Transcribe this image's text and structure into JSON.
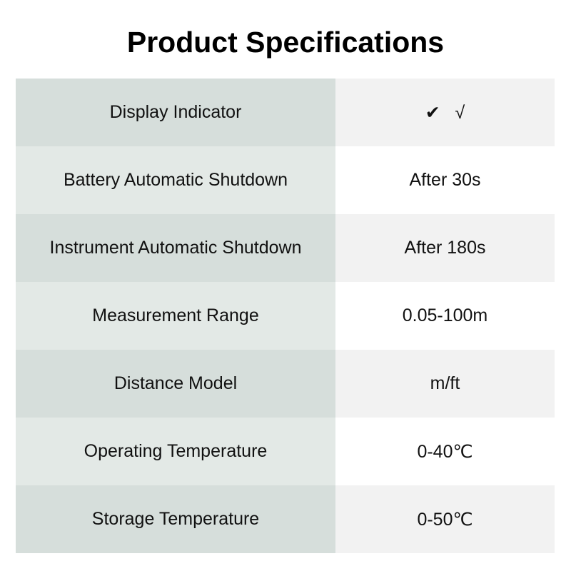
{
  "title": "Product Specifications",
  "rows": [
    {
      "label": "Display Indicator",
      "value": "✔   √"
    },
    {
      "label": "Battery Automatic Shutdown",
      "value": "After 30s"
    },
    {
      "label": "Instrument Automatic Shutdown",
      "value": "After 180s"
    },
    {
      "label": "Measurement Range",
      "value": "0.05-100m"
    },
    {
      "label": "Distance Model",
      "value": "m/ft"
    },
    {
      "label": "Operating Temperature",
      "value": "0-40℃"
    },
    {
      "label": "Storage Temperature",
      "value": "0-50℃"
    }
  ]
}
